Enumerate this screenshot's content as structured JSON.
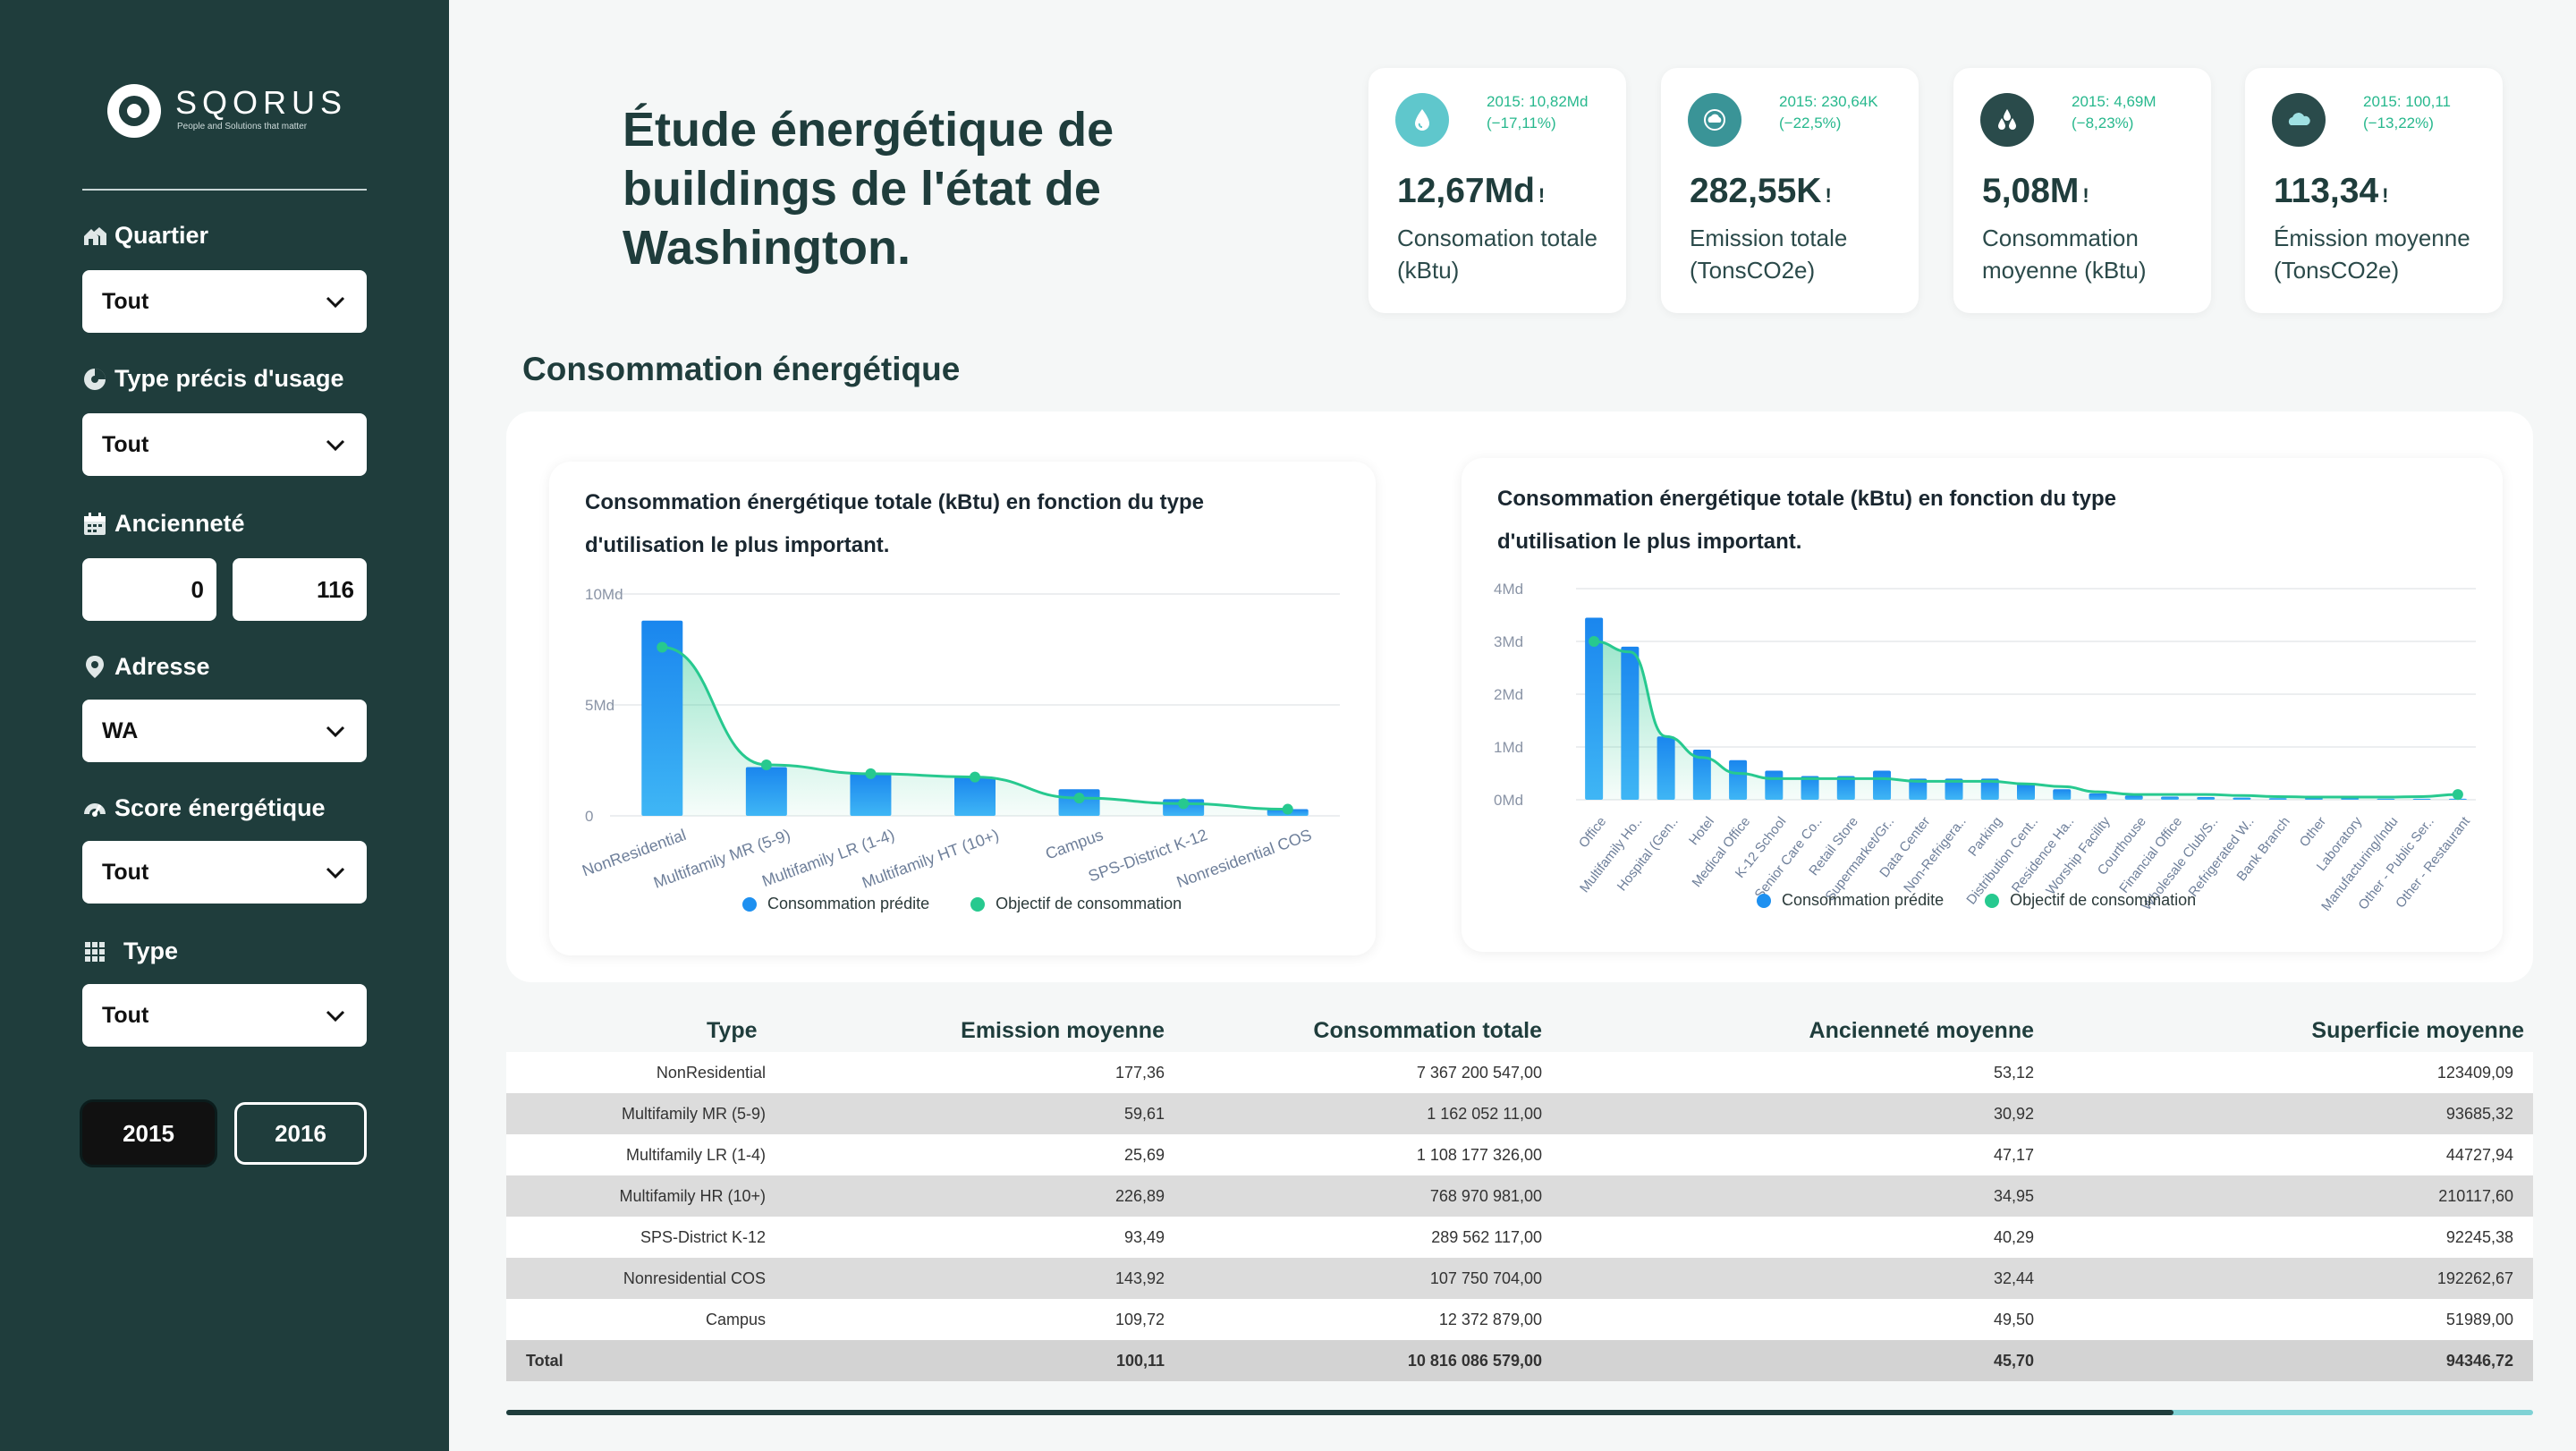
{
  "brand": {
    "name": "SQORUS",
    "tagline": "People and Solutions that matter"
  },
  "colors": {
    "sidebar": "#1f3d3c",
    "accent_green": "#27c98f",
    "bar_blue": "#1e90f0",
    "teal": "#3bbfc3"
  },
  "filters": {
    "quartier": {
      "label": "Quartier",
      "value": "Tout",
      "icon": "house-icon"
    },
    "type_usage": {
      "label": "Type précis d'usage",
      "value": "Tout",
      "icon": "pie-icon"
    },
    "anciennete": {
      "label": "Ancienneté",
      "min": "0",
      "max": "116",
      "icon": "calendar-icon"
    },
    "adresse": {
      "label": "Adresse",
      "value": "WA",
      "icon": "location-pin-icon"
    },
    "score": {
      "label": "Score énergétique",
      "value": "Tout",
      "icon": "gauge-icon"
    },
    "type": {
      "label": "Type",
      "value": "Tout",
      "icon": "grid-icon"
    },
    "years": [
      "2015",
      "2016"
    ],
    "selected_year": "2015"
  },
  "title": "Étude énergétique de buildings de l'état de Washington.",
  "kpis": [
    {
      "delta": "2015: 10,82Md\n(−17,11%)",
      "value": "12,67Md",
      "bang": "!",
      "label": "Consomation totale (kBtu)",
      "icon": "drop-icon"
    },
    {
      "delta": "2015: 230,64K\n(−22,5%)",
      "value": "282,55K",
      "bang": "!",
      "label": "Emission totale (TonsCO2e)",
      "icon": "cloud-recycle-icon"
    },
    {
      "delta": "2015: 4,69M\n(−8,23%)",
      "value": "5,08M",
      "bang": "!",
      "label": "Consommation moyenne (kBtu)",
      "icon": "drops-icon"
    },
    {
      "delta": "2015: 100,11\n(−13,22%)",
      "value": "113,34",
      "bang": "!",
      "label": "Émission moyenne (TonsCO2e)",
      "icon": "cloud-icon"
    }
  ],
  "section_title": "Consommation énergétique",
  "legend": {
    "predicted": "Consommation prédite",
    "objective": "Objectif de consommation"
  },
  "chart_data": [
    {
      "type": "bar",
      "title": "Consommation énergétique totale (kBtu) en fonction du type d'utilisation le plus important.",
      "categories": [
        "NonResidential",
        "Multifamily MR (5-9)",
        "Multifamily LR (1-4)",
        "Multifamily HT (10+)",
        "Campus",
        "SPS-District K-12",
        "Nonresidential COS"
      ],
      "y_ticks": [
        "10Md",
        "5Md",
        "0"
      ],
      "ylim": [
        0,
        10
      ],
      "y_unit": "Md",
      "series": [
        {
          "name": "Consommation prédite",
          "type": "bar",
          "values": [
            8.8,
            2.2,
            1.9,
            1.75,
            1.2,
            0.75,
            0.3
          ]
        },
        {
          "name": "Objectif de consommation",
          "type": "area-line",
          "values": [
            7.6,
            2.3,
            1.9,
            1.75,
            0.8,
            0.55,
            0.3
          ]
        }
      ]
    },
    {
      "type": "bar",
      "title": "Consommation énergétique totale (kBtu) en fonction du type d'utilisation le plus important.",
      "categories": [
        "Office",
        "Multifamily Ho..",
        "Hospital (Gen..",
        "Hotel",
        "Medical Office",
        "K-12 School",
        "Senior Care Co..",
        "Retail Store",
        "Supermarket/Gr..",
        "Data Center",
        "Non-Refrigera..",
        "Parking",
        "Distribution Cent..",
        "Residence Ha..",
        "Worship Facility",
        "Courthouse",
        "Financial Office",
        "Wholesale Club/S..",
        "Refrigerated W..",
        "Bank Branch",
        "Other",
        "Laboratory",
        "Manufacturing/Indu",
        "Other - Public Ser..",
        "Other - Restaurant"
      ],
      "y_ticks": [
        "4Md",
        "3Md",
        "2Md",
        "1Md",
        "0Md"
      ],
      "ylim": [
        0,
        4
      ],
      "y_unit": "Md",
      "series": [
        {
          "name": "Consommation prédite",
          "type": "bar",
          "values": [
            3.45,
            2.9,
            1.2,
            0.95,
            0.75,
            0.55,
            0.45,
            0.45,
            0.55,
            0.4,
            0.4,
            0.4,
            0.3,
            0.2,
            0.12,
            0.08,
            0.06,
            0.05,
            0.04,
            0.03,
            0.03,
            0.03,
            0.02,
            0.02,
            0.02
          ]
        },
        {
          "name": "Objectif de consommation",
          "type": "area-line",
          "values": [
            3.0,
            2.8,
            1.2,
            0.8,
            0.5,
            0.4,
            0.4,
            0.4,
            0.4,
            0.35,
            0.35,
            0.35,
            0.3,
            0.25,
            0.15,
            0.1,
            0.1,
            0.1,
            0.08,
            0.06,
            0.05,
            0.05,
            0.05,
            0.06,
            0.1
          ]
        }
      ]
    }
  ],
  "table": {
    "headers": [
      "Type",
      "Emission moyenne",
      "Consommation totale",
      "Ancienneté moyenne",
      "Superficie moyenne"
    ],
    "rows": [
      [
        "NonResidential",
        "177,36",
        "7 367 200 547,00",
        "53,12",
        "123409,09"
      ],
      [
        "Multifamily MR (5-9)",
        "59,61",
        "1 162 052 11,00",
        "30,92",
        "93685,32"
      ],
      [
        "Multifamily LR (1-4)",
        "25,69",
        "1 108 177 326,00",
        "47,17",
        "44727,94"
      ],
      [
        "Multifamily HR (10+)",
        "226,89",
        "768  970 981,00",
        "34,95",
        "210117,60"
      ],
      [
        "SPS-District K-12",
        "93,49",
        "289 562 117,00",
        "40,29",
        "92245,38"
      ],
      [
        "Nonresidential COS",
        "143,92",
        "107 750 704,00",
        "32,44",
        "192262,67"
      ],
      [
        "Campus",
        "109,72",
        "12 372 879,00",
        "49,50",
        "51989,00"
      ]
    ],
    "total": [
      "Total",
      "100,11",
      "10 816 086 579,00",
      "45,70",
      "94346,72"
    ]
  }
}
